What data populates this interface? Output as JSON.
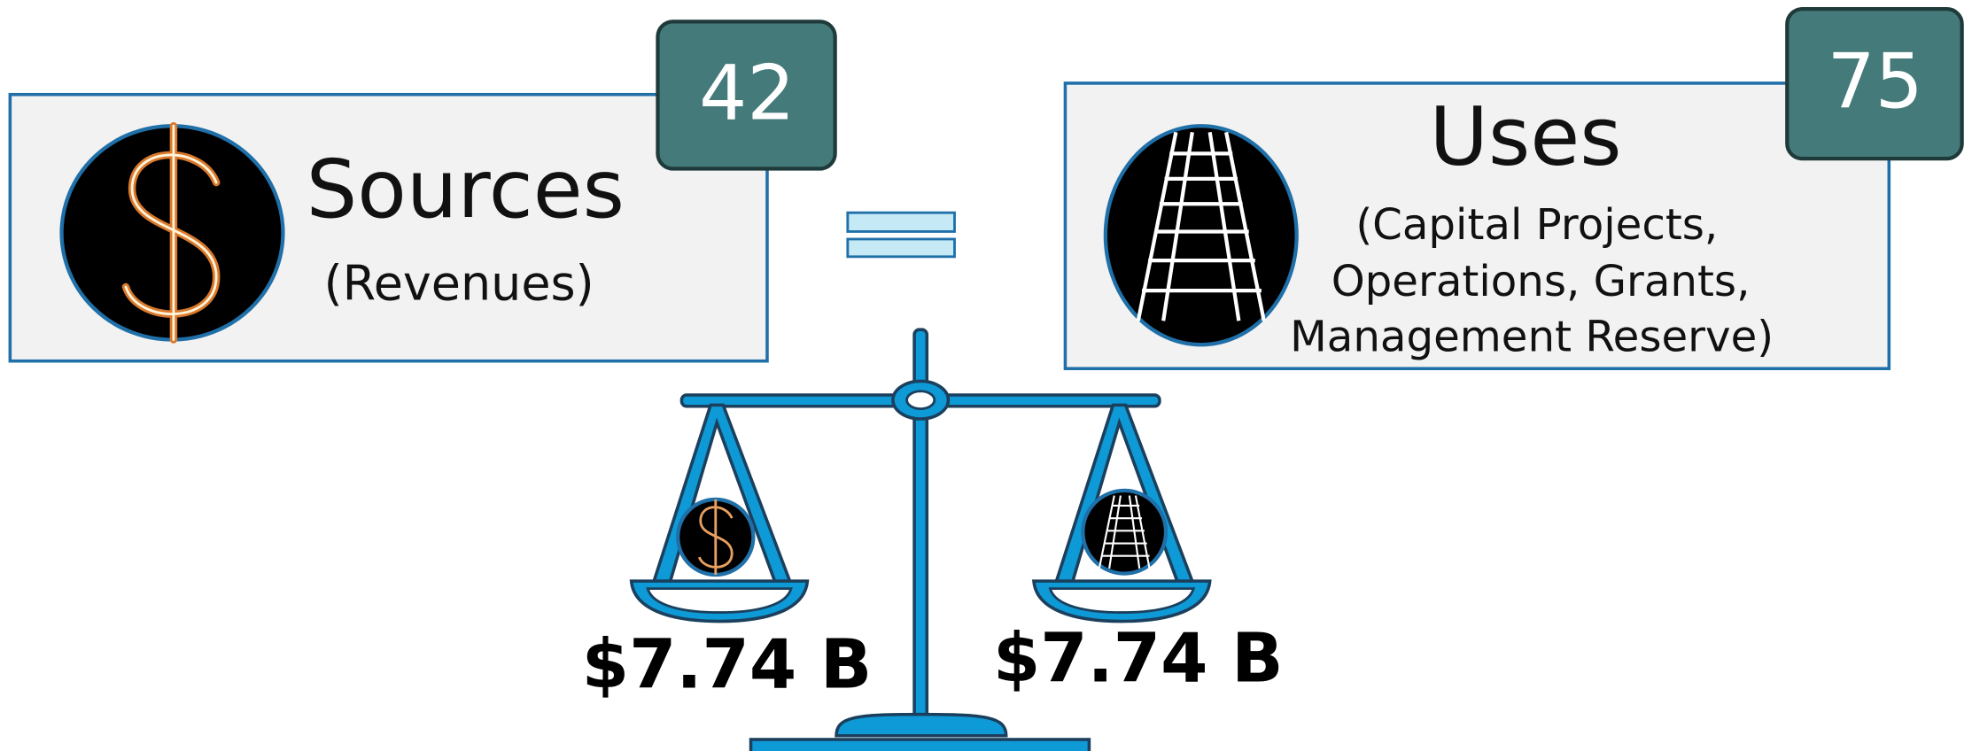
{
  "sources": {
    "badge": "42",
    "title": "Sources",
    "subtitle": "(Revenues)"
  },
  "equals": {
    "left_amount": "$7.74 B",
    "right_amount": "$7.74 B"
  },
  "uses": {
    "badge": "75",
    "title": "Uses",
    "subtitle": [
      "(Capital Projects,",
      "Operations, Grants,",
      "Management Reserve)"
    ]
  }
}
